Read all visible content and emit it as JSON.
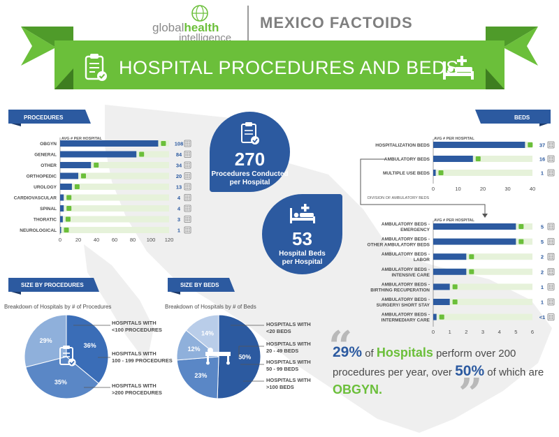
{
  "header": {
    "logo_global": "global",
    "logo_health": "health",
    "logo_intelligence": "intelligence",
    "title": "MEXICO FACTOIDS",
    "banner": "HOSPITAL PROCEDURES AND BEDS"
  },
  "colors": {
    "blue": "#2c5aa0",
    "green": "#6bbf3a",
    "light_green": "#e6f2da",
    "gray": "#8a8a8a"
  },
  "procedures": {
    "ribbon": "PROCEDURES",
    "subtitle": "AVG # PER HOSPITAL"
  },
  "beds": {
    "ribbon": "BEDS",
    "subtitle": "AVG # PER HOSPITAL",
    "division_label": "DIVISION OF AMBULATORY BEDS",
    "subtitle2": "AVG # PER HOSPITAL"
  },
  "stats": {
    "procedures_value": "270",
    "procedures_label_1": "Procedures Conducted",
    "procedures_label_2": "per Hospital",
    "beds_value": "53",
    "beds_label_1": "Hospital Beds",
    "beds_label_2": "per Hospital"
  },
  "size_by_procedures": {
    "ribbon": "SIZE BY PROCEDURES",
    "breakdown": "Breakdown of Hospitals by # of Procedures",
    "legend": [
      [
        "HOSPITALS WITH",
        "<100 PROCEDURES"
      ],
      [
        "HOSPITALS WITH",
        "100 - 199 PROCEDURES"
      ],
      [
        "HOSPITALS WITH",
        ">200 PROCEDURES"
      ]
    ]
  },
  "size_by_beds": {
    "ribbon": "SIZE BY BEDS",
    "breakdown": "Breakdown of Hospitals by # of Beds",
    "legend": [
      [
        "HOSPITALS WITH",
        "<20 BEDS"
      ],
      [
        "HOSPITALS WITH",
        "20 - 49 BEDS"
      ],
      [
        "HOSPITALS WITH",
        "50 - 99 BEDS"
      ],
      [
        "HOSPITALS WITH",
        ">100 BEDS"
      ]
    ]
  },
  "quote": {
    "pct1": "29%",
    "of": " of ",
    "hospitals": "Hospitals",
    "text1": " perform over 200 procedures per year, over ",
    "pct2": "50%",
    "text2": " of which are ",
    "obgyn": "OBGYN."
  },
  "chart_data": [
    {
      "type": "bar",
      "title": "PROCEDURES",
      "subtitle": "AVG # PER HOSPITAL",
      "categories": [
        "OBGYN",
        "GENERAL",
        "OTHER",
        "ORTHOPEDIC",
        "UROLOGY",
        "CARDIOVASCULAR",
        "SPINAL",
        "THORATIC",
        "NEUROLOGICAL"
      ],
      "values": [
        108,
        84,
        34,
        20,
        13,
        4,
        4,
        3,
        1
      ],
      "ticks": [
        "0",
        "20",
        "40",
        "60",
        "80",
        "100",
        "120"
      ],
      "xlim": [
        0,
        120
      ],
      "orientation": "horizontal"
    },
    {
      "type": "bar",
      "title": "BEDS",
      "subtitle": "AVG # PER HOSPITAL",
      "categories": [
        "HOSPITALIZATION BEDS",
        "AMBULATORY BEDS",
        "MULTIPLE USE BEDS"
      ],
      "values": [
        37,
        16,
        1
      ],
      "ticks": [
        "0",
        "10",
        "20",
        "30",
        "40"
      ],
      "xlim": [
        0,
        40
      ],
      "orientation": "horizontal"
    },
    {
      "type": "bar",
      "title": "DIVISION OF AMBULATORY BEDS",
      "subtitle": "AVG # PER HOSPITAL",
      "categories": [
        [
          "AMBULATORY BEDS -",
          "EMERGENCY"
        ],
        [
          "AMBULATORY BEDS -",
          "OTHER AMBULATORY BEDS"
        ],
        [
          "AMBULATORY BEDS -",
          "LABOR"
        ],
        [
          "AMBULATORY BEDS -",
          "INTENSIVE  CARE"
        ],
        [
          "AMBULATORY BEDS -",
          "BIRTHING  RECUPERATION"
        ],
        [
          "AMBULATORY BEDS -",
          "SURGERY/ SHORT STAY"
        ],
        [
          "AMBULATORY BEDS -",
          "INTERMEDIARY  CARE"
        ]
      ],
      "values": [
        5,
        5,
        2,
        2,
        1,
        1,
        0.2
      ],
      "value_labels": [
        "5",
        "5",
        "2",
        "2",
        "1",
        "1",
        "<1"
      ],
      "ticks": [
        "0",
        "1",
        "2",
        "3",
        "4",
        "5",
        "6"
      ],
      "xlim": [
        0,
        6
      ],
      "orientation": "horizontal"
    },
    {
      "type": "pie",
      "title": "SIZE BY PROCEDURES",
      "slices": [
        {
          "label": "<100 PROCEDURES",
          "value": 36,
          "text": "36%",
          "color": "#3a6db7"
        },
        {
          "label": "100 - 199 PROCEDURES",
          "value": 35,
          "text": "35%",
          "color": "#5a87c6"
        },
        {
          "label": ">200 PROCEDURES",
          "value": 29,
          "text": "29%",
          "color": "#8fb0db"
        }
      ]
    },
    {
      "type": "pie",
      "title": "SIZE BY BEDS",
      "slices": [
        {
          "label": "<20 BEDS",
          "value": 50,
          "text": "50%",
          "color": "#2c5aa0"
        },
        {
          "label": "20 - 49 BEDS",
          "value": 23,
          "text": "23%",
          "color": "#5a87c6"
        },
        {
          "label": "50 - 99 BEDS",
          "value": 12,
          "text": "12%",
          "color": "#8fb0db"
        },
        {
          "label": ">100 BEDS",
          "value": 14,
          "text": "14%",
          "color": "#b9cde9"
        }
      ]
    }
  ]
}
